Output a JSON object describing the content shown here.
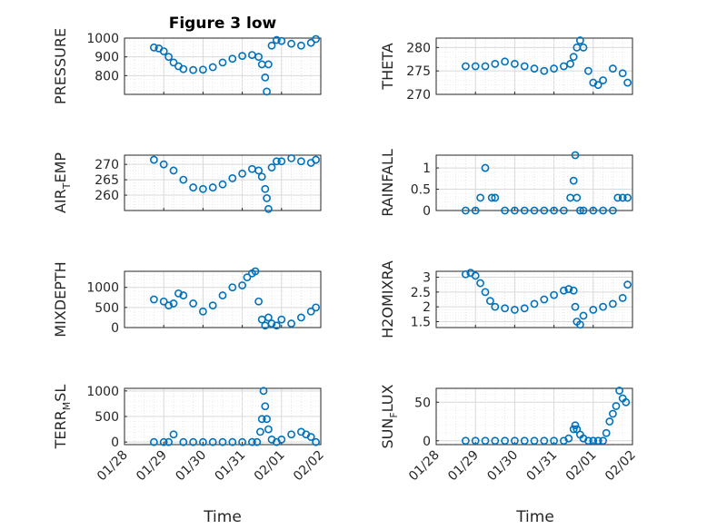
{
  "figure_title": "Figure 3 low",
  "x_axis_label": "Time",
  "x_tick_labels": [
    "01/28",
    "01/29",
    "01/30",
    "01/31",
    "02/01",
    "02/02"
  ],
  "colors": {
    "marker": "#0072BD",
    "axes": "#262626",
    "grid": "#d9d9d9",
    "background": "#ffffff"
  },
  "chart_data": [
    {
      "type": "scatter",
      "ylabel": "PRESSURE",
      "ylim": [
        700,
        1000
      ],
      "yticks": [
        800,
        900,
        1000
      ],
      "grid": true,
      "x": [
        "2021-01-28T18:00",
        "2021-01-28T21:00",
        "2021-01-29T00:00",
        "2021-01-29T03:00",
        "2021-01-29T06:00",
        "2021-01-29T09:00",
        "2021-01-29T12:00",
        "2021-01-29T18:00",
        "2021-01-30T00:00",
        "2021-01-30T06:00",
        "2021-01-30T12:00",
        "2021-01-30T18:00",
        "2021-01-31T00:00",
        "2021-01-31T06:00",
        "2021-01-31T10:00",
        "2021-01-31T12:00",
        "2021-01-31T14:00",
        "2021-01-31T15:00",
        "2021-01-31T16:00",
        "2021-01-31T18:00",
        "2021-01-31T21:00",
        "2021-02-01T00:00",
        "2021-02-01T06:00",
        "2021-02-01T12:00",
        "2021-02-01T18:00",
        "2021-02-01T21:00"
      ],
      "y": [
        950,
        945,
        930,
        900,
        870,
        850,
        835,
        830,
        832,
        845,
        870,
        890,
        905,
        910,
        900,
        860,
        790,
        715,
        860,
        960,
        990,
        985,
        970,
        960,
        975,
        995
      ]
    },
    {
      "type": "scatter",
      "ylabel": "THETA",
      "ylim": [
        270,
        282
      ],
      "yticks": [
        270,
        275,
        280
      ],
      "grid": true,
      "x": [
        "2021-01-28T18:00",
        "2021-01-29T00:00",
        "2021-01-29T06:00",
        "2021-01-29T12:00",
        "2021-01-29T18:00",
        "2021-01-30T00:00",
        "2021-01-30T06:00",
        "2021-01-30T12:00",
        "2021-01-30T18:00",
        "2021-01-31T00:00",
        "2021-01-31T06:00",
        "2021-01-31T10:00",
        "2021-01-31T12:00",
        "2021-01-31T14:00",
        "2021-01-31T16:00",
        "2021-01-31T18:00",
        "2021-01-31T21:00",
        "2021-02-01T00:00",
        "2021-02-01T03:00",
        "2021-02-01T06:00",
        "2021-02-01T12:00",
        "2021-02-01T18:00",
        "2021-02-01T21:00"
      ],
      "y": [
        276,
        276,
        276,
        276.5,
        277,
        276.5,
        276,
        275.5,
        275,
        275.5,
        276,
        276.5,
        278,
        280,
        281.5,
        280,
        275,
        272.5,
        272,
        273,
        275.5,
        274.5,
        272.5
      ]
    },
    {
      "type": "scatter",
      "ylabel": "AIR_TEMP",
      "ylim": [
        255,
        273
      ],
      "yticks": [
        260,
        265,
        270
      ],
      "grid": true,
      "x": [
        "2021-01-28T18:00",
        "2021-01-29T00:00",
        "2021-01-29T06:00",
        "2021-01-29T12:00",
        "2021-01-29T18:00",
        "2021-01-30T00:00",
        "2021-01-30T06:00",
        "2021-01-30T12:00",
        "2021-01-30T18:00",
        "2021-01-31T00:00",
        "2021-01-31T06:00",
        "2021-01-31T10:00",
        "2021-01-31T12:00",
        "2021-01-31T14:00",
        "2021-01-31T15:00",
        "2021-01-31T16:00",
        "2021-01-31T18:00",
        "2021-01-31T21:00",
        "2021-02-01T00:00",
        "2021-02-01T06:00",
        "2021-02-01T12:00",
        "2021-02-01T18:00",
        "2021-02-01T21:00"
      ],
      "y": [
        271.5,
        270,
        268,
        265,
        262.5,
        262,
        262.5,
        263.5,
        265.5,
        267,
        268.5,
        268,
        266,
        262,
        259,
        255.5,
        269,
        271,
        271,
        272,
        271,
        270.5,
        271.5
      ]
    },
    {
      "type": "scatter",
      "ylabel": "RAINFALL",
      "ylim": [
        0,
        1.3
      ],
      "yticks": [
        0,
        0.5,
        1
      ],
      "grid": true,
      "x": [
        "2021-01-28T18:00",
        "2021-01-29T00:00",
        "2021-01-29T03:00",
        "2021-01-29T06:00",
        "2021-01-29T10:00",
        "2021-01-29T12:00",
        "2021-01-29T18:00",
        "2021-01-30T00:00",
        "2021-01-30T06:00",
        "2021-01-30T12:00",
        "2021-01-30T18:00",
        "2021-01-31T00:00",
        "2021-01-31T06:00",
        "2021-01-31T10:00",
        "2021-01-31T12:00",
        "2021-01-31T13:00",
        "2021-01-31T14:00",
        "2021-01-31T16:00",
        "2021-01-31T18:00",
        "2021-02-01T00:00",
        "2021-02-01T06:00",
        "2021-02-01T12:00",
        "2021-02-01T15:00",
        "2021-02-01T18:00",
        "2021-02-01T21:00"
      ],
      "y": [
        0,
        0,
        0.3,
        1,
        0.3,
        0.3,
        0,
        0,
        0,
        0,
        0,
        0,
        0,
        0.3,
        0.7,
        1.3,
        0.3,
        0,
        0,
        0,
        0,
        0,
        0.3,
        0.3,
        0.3
      ]
    },
    {
      "type": "scatter",
      "ylabel": "MIXDEPTH",
      "ylim": [
        0,
        1400
      ],
      "yticks": [
        0,
        500,
        1000
      ],
      "grid": true,
      "x": [
        "2021-01-28T18:00",
        "2021-01-29T00:00",
        "2021-01-29T03:00",
        "2021-01-29T06:00",
        "2021-01-29T09:00",
        "2021-01-29T12:00",
        "2021-01-29T18:00",
        "2021-01-30T00:00",
        "2021-01-30T06:00",
        "2021-01-30T12:00",
        "2021-01-30T18:00",
        "2021-01-31T00:00",
        "2021-01-31T03:00",
        "2021-01-31T06:00",
        "2021-01-31T08:00",
        "2021-01-31T10:00",
        "2021-01-31T12:00",
        "2021-01-31T14:00",
        "2021-01-31T16:00",
        "2021-01-31T18:00",
        "2021-01-31T21:00",
        "2021-02-01T00:00",
        "2021-02-01T06:00",
        "2021-02-01T12:00",
        "2021-02-01T18:00",
        "2021-02-01T21:00"
      ],
      "y": [
        700,
        650,
        550,
        600,
        850,
        800,
        600,
        400,
        550,
        800,
        1000,
        1050,
        1250,
        1350,
        1400,
        650,
        200,
        50,
        250,
        100,
        50,
        200,
        100,
        250,
        400,
        500
      ]
    },
    {
      "type": "scatter",
      "ylabel": "H2OMIXRA",
      "ylim": [
        1.3,
        3.2
      ],
      "yticks": [
        1.5,
        2,
        2.5,
        3
      ],
      "grid": true,
      "x": [
        "2021-01-28T18:00",
        "2021-01-28T21:00",
        "2021-01-29T00:00",
        "2021-01-29T03:00",
        "2021-01-29T06:00",
        "2021-01-29T09:00",
        "2021-01-29T12:00",
        "2021-01-29T18:00",
        "2021-01-30T00:00",
        "2021-01-30T06:00",
        "2021-01-30T12:00",
        "2021-01-30T18:00",
        "2021-01-31T00:00",
        "2021-01-31T06:00",
        "2021-01-31T09:00",
        "2021-01-31T12:00",
        "2021-01-31T13:00",
        "2021-01-31T14:00",
        "2021-01-31T16:00",
        "2021-01-31T18:00",
        "2021-02-01T00:00",
        "2021-02-01T06:00",
        "2021-02-01T12:00",
        "2021-02-01T18:00",
        "2021-02-01T21:00"
      ],
      "y": [
        3.1,
        3.15,
        3.05,
        2.8,
        2.5,
        2.2,
        2.0,
        1.95,
        1.9,
        1.95,
        2.1,
        2.25,
        2.4,
        2.55,
        2.6,
        2.55,
        2.0,
        1.5,
        1.4,
        1.7,
        1.9,
        2.0,
        2.1,
        2.3,
        2.75
      ]
    },
    {
      "type": "scatter",
      "ylabel": "TERR_MSL",
      "ylim": [
        -50,
        1050
      ],
      "yticks": [
        0,
        500,
        1000
      ],
      "grid": true,
      "x": [
        "2021-01-28T18:00",
        "2021-01-29T00:00",
        "2021-01-29T03:00",
        "2021-01-29T06:00",
        "2021-01-29T12:00",
        "2021-01-29T18:00",
        "2021-01-30T00:00",
        "2021-01-30T06:00",
        "2021-01-30T12:00",
        "2021-01-30T18:00",
        "2021-01-31T00:00",
        "2021-01-31T06:00",
        "2021-01-31T09:00",
        "2021-01-31T11:00",
        "2021-01-31T12:00",
        "2021-01-31T13:00",
        "2021-01-31T14:00",
        "2021-01-31T15:00",
        "2021-01-31T16:00",
        "2021-01-31T18:00",
        "2021-01-31T21:00",
        "2021-02-01T00:00",
        "2021-02-01T06:00",
        "2021-02-01T12:00",
        "2021-02-01T15:00",
        "2021-02-01T18:00",
        "2021-02-01T21:00"
      ],
      "y": [
        0,
        0,
        0,
        150,
        0,
        0,
        0,
        0,
        0,
        0,
        0,
        0,
        0,
        200,
        450,
        1000,
        700,
        450,
        250,
        50,
        0,
        50,
        150,
        200,
        150,
        100,
        0
      ]
    },
    {
      "type": "scatter",
      "ylabel": "SUN_FLUX",
      "ylim": [
        -5,
        68
      ],
      "yticks": [
        0,
        50
      ],
      "grid": true,
      "x": [
        "2021-01-28T18:00",
        "2021-01-29T00:00",
        "2021-01-29T06:00",
        "2021-01-29T12:00",
        "2021-01-29T18:00",
        "2021-01-30T00:00",
        "2021-01-30T06:00",
        "2021-01-30T12:00",
        "2021-01-30T18:00",
        "2021-01-31T00:00",
        "2021-01-31T06:00",
        "2021-01-31T09:00",
        "2021-01-31T12:00",
        "2021-01-31T13:00",
        "2021-01-31T14:00",
        "2021-01-31T16:00",
        "2021-01-31T18:00",
        "2021-01-31T21:00",
        "2021-02-01T00:00",
        "2021-02-01T03:00",
        "2021-02-01T06:00",
        "2021-02-01T08:00",
        "2021-02-01T10:00",
        "2021-02-01T12:00",
        "2021-02-01T14:00",
        "2021-02-01T16:00",
        "2021-02-01T18:00",
        "2021-02-01T20:00"
      ],
      "y": [
        0,
        0,
        0,
        0,
        0,
        0,
        0,
        0,
        0,
        0,
        0,
        3,
        15,
        20,
        15,
        8,
        3,
        0,
        0,
        0,
        0,
        10,
        25,
        35,
        45,
        65,
        55,
        50
      ]
    }
  ]
}
